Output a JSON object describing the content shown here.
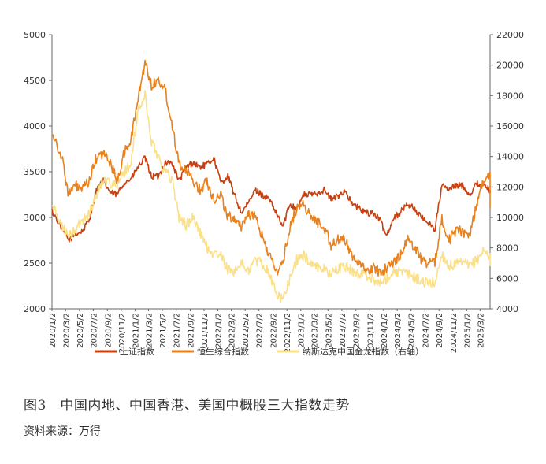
{
  "caption": "图3　中国内地、中国香港、美国中概股三大指数走势",
  "source": "资料来源：万得",
  "chart_data": {
    "type": "line",
    "title": "",
    "left_axis": {
      "min": 2000,
      "max": 5000,
      "step": 500,
      "ticks": [
        "2000",
        "2500",
        "3000",
        "3500",
        "4000",
        "4500",
        "5000"
      ]
    },
    "right_axis": {
      "min": 4000,
      "max": 22000,
      "step": 2000,
      "ticks": [
        "4000",
        "6000",
        "8000",
        "10000",
        "12000",
        "14000",
        "16000",
        "18000",
        "20000",
        "22000"
      ]
    },
    "x_ticks": [
      "2020/1/2",
      "2020/3/2",
      "2020/5/2",
      "2020/7/2",
      "2020/9/2",
      "2020/11/2",
      "2021/1/2",
      "2021/3/2",
      "2021/5/2",
      "2021/7/2",
      "2021/9/2",
      "2021/11/2",
      "2022/1/2",
      "2022/3/2",
      "2022/5/2",
      "2022/7/2",
      "2022/9/2",
      "2022/11/2",
      "2023/1/2",
      "2023/3/2",
      "2023/5/2",
      "2023/7/2",
      "2023/9/2",
      "2023/11/2",
      "2024/1/2",
      "2024/3/2",
      "2024/5/2",
      "2024/7/2",
      "2024/9/2",
      "2024/11/2",
      "2025/1/2",
      "2025/3/2"
    ],
    "x_range": [
      "2020/1/2",
      "2025/4/15"
    ],
    "legend_position": "bottom",
    "series": [
      {
        "name": "上证指数",
        "axis": "left",
        "color": "#C8400F",
        "sampling": "monthly from 2020/1",
        "values": [
          3070,
          2880,
          2750,
          2820,
          2850,
          2980,
          3300,
          3400,
          3270,
          3250,
          3380,
          3420,
          3550,
          3650,
          3450,
          3450,
          3600,
          3590,
          3400,
          3550,
          3600,
          3550,
          3580,
          3650,
          3380,
          3450,
          3250,
          3050,
          3150,
          3300,
          3250,
          3200,
          3050,
          2900,
          3150,
          3100,
          3250,
          3250,
          3270,
          3300,
          3200,
          3230,
          3300,
          3150,
          3100,
          3050,
          3050,
          2980,
          2800,
          3000,
          3050,
          3150,
          3100,
          3000,
          2950,
          2870,
          3350,
          3300,
          3350,
          3350,
          3250,
          3370,
          3350,
          3300,
          3300
        ]
      },
      {
        "name": "恒生综合指数",
        "axis": "left",
        "color": "#E8821E",
        "sampling": "monthly from 2020/1",
        "values": [
          3950,
          3650,
          3250,
          3350,
          3300,
          3400,
          3650,
          3700,
          3600,
          3400,
          3700,
          3850,
          4300,
          4700,
          4450,
          4500,
          4400,
          4000,
          3600,
          3500,
          3400,
          3300,
          3400,
          3200,
          3250,
          3000,
          3000,
          2900,
          3050,
          3000,
          2800,
          2600,
          2400,
          2500,
          2900,
          3100,
          3150,
          3000,
          2950,
          2900,
          2700,
          2750,
          2750,
          2600,
          2500,
          2400,
          2450,
          2400,
          2450,
          2500,
          2600,
          2750,
          2700,
          2550,
          2500,
          2500,
          3000,
          2750,
          2850,
          2850,
          2800,
          3150,
          3400,
          3450,
          3100
        ]
      },
      {
        "name": "纳斯达克中国金龙指数（右轴）",
        "axis": "right",
        "color": "#FBE08A",
        "sampling": "monthly from 2020/1",
        "values": [
          10800,
          9500,
          8700,
          9200,
          9800,
          10300,
          11500,
          12500,
          12300,
          12000,
          13000,
          13500,
          17000,
          18000,
          15000,
          14000,
          13000,
          12500,
          10000,
          9500,
          10000,
          9000,
          8000,
          7600,
          7500,
          6500,
          6500,
          7000,
          6500,
          7200,
          7000,
          6400,
          5000,
          4600,
          6000,
          7200,
          7500,
          7000,
          6800,
          6600,
          6300,
          6600,
          6800,
          6500,
          6300,
          6200,
          6000,
          5600,
          6000,
          6500,
          6400,
          6300,
          6100,
          5800,
          5700,
          5700,
          7600,
          6800,
          6900,
          7000,
          6800,
          7200,
          7800,
          7500,
          6800
        ]
      }
    ]
  }
}
